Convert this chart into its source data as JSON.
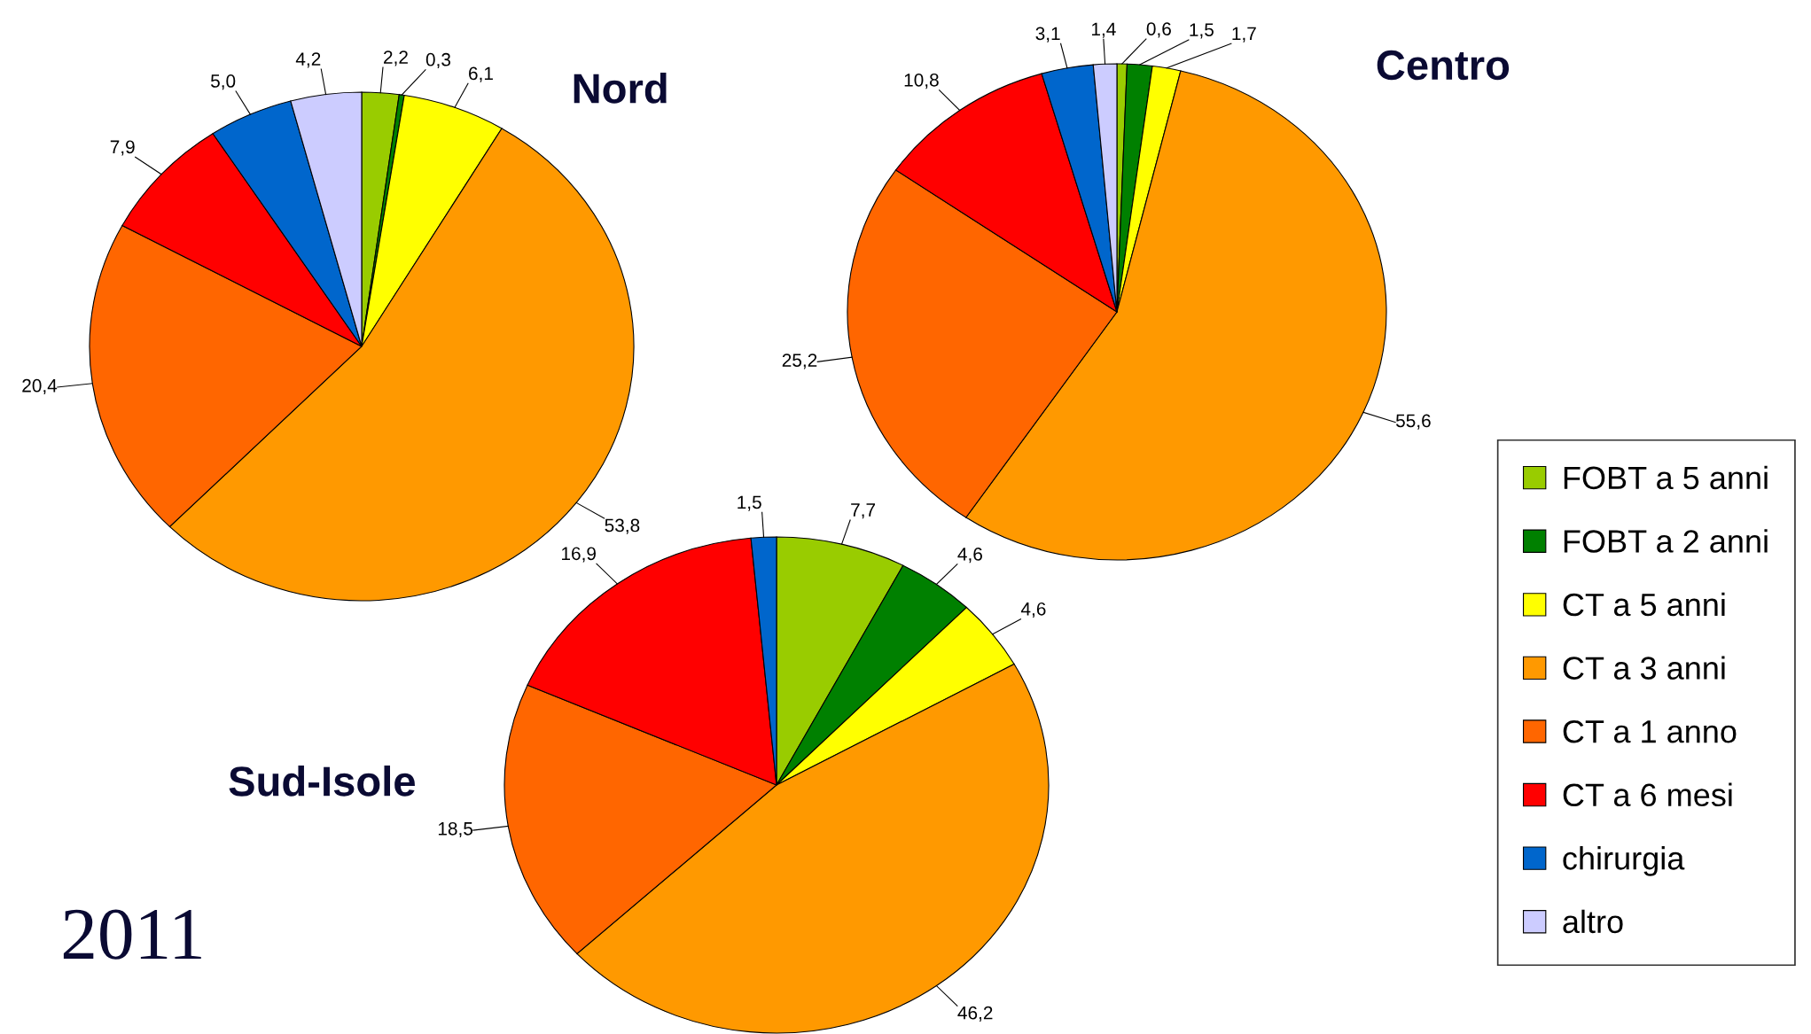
{
  "chart_data": [
    {
      "type": "pie",
      "title": "Nord",
      "categories": [
        "FOBT a 5 anni",
        "FOBT a 2 anni",
        "CT a 5 anni",
        "CT a 3 anni",
        "CT a 1 anno",
        "CT a 6 mesi",
        "chirurgia",
        "altro"
      ],
      "values": [
        2.2,
        0.3,
        6.1,
        53.8,
        20.4,
        7.9,
        5.0,
        4.2
      ],
      "value_labels": [
        "2,2",
        "0,3",
        "6,1",
        "53,8",
        "20,4",
        "7,9",
        "5,0",
        "4,2"
      ],
      "colors": [
        "#99cc00",
        "#008000",
        "#ffff00",
        "#ff9900",
        "#ff6600",
        "#ff0000",
        "#0066cc",
        "#ccccff"
      ],
      "legend": "right"
    },
    {
      "type": "pie",
      "title": "Centro",
      "categories": [
        null,
        null,
        null,
        null,
        null,
        null,
        null,
        null
      ],
      "values": [
        0.6,
        1.5,
        1.7,
        55.6,
        25.2,
        10.8,
        3.1,
        1.4
      ],
      "value_labels": [
        "0,6",
        "1,5",
        "1,7",
        "55,6",
        "25,2",
        "10,8",
        "3,1",
        "1,4"
      ],
      "colors": [
        "#99cc00",
        "#008000",
        "#ffff00",
        "#ff9900",
        "#ff6600",
        "#ff0000",
        "#0066cc",
        "#ccccff"
      ]
    },
    {
      "type": "pie",
      "title": "Sud-Isole",
      "categories": [
        null,
        null,
        null,
        null,
        null,
        null,
        null
      ],
      "values": [
        7.7,
        4.6,
        4.6,
        46.2,
        18.5,
        16.9,
        1.5
      ],
      "value_labels": [
        "7,7",
        "4,6",
        "4,6",
        "46,2",
        "18,5",
        "16,9",
        "1,5"
      ],
      "colors": [
        "#99cc00",
        "#008000",
        "#ffff00",
        "#ff9900",
        "#ff6600",
        "#ff0000",
        "#0066cc"
      ],
      "annotations": [
        "2011"
      ]
    }
  ]
}
